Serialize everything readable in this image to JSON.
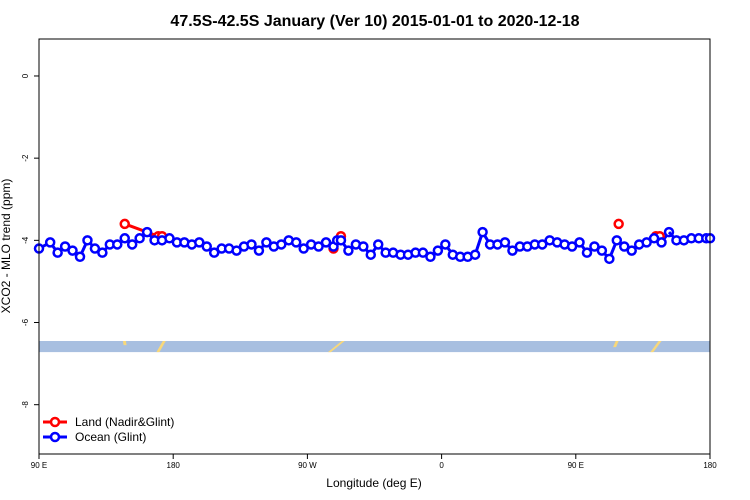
{
  "chart_data": {
    "type": "line",
    "title": "47.5S-42.5S January (Ver 10)   2015-01-01 to 2020-12-18",
    "xlabel": "Longitude (deg E)",
    "ylabel": "XCO2 - MLO trend (ppm)",
    "xlim": [
      90,
      450
    ],
    "ylim": [
      -9.2,
      0.9
    ],
    "x_ticks": [
      {
        "value": 90,
        "label": "90 E"
      },
      {
        "value": 162,
        "label": "180"
      },
      {
        "value": 234,
        "label": "90 W"
      },
      {
        "value": 306,
        "label": "0"
      },
      {
        "value": 378,
        "label": "90 E"
      },
      {
        "value": 450,
        "label": "180"
      }
    ],
    "y_ticks": [
      {
        "value": 0,
        "label": "0"
      },
      {
        "value": -2,
        "label": "-2"
      },
      {
        "value": -4,
        "label": "-4"
      },
      {
        "value": -6,
        "label": "-6"
      },
      {
        "value": -8,
        "label": "-8"
      }
    ],
    "grid": false,
    "legend_position": "bottom-left",
    "series": [
      {
        "name": "Land (Nadir&Glint)",
        "color": "#ff0000",
        "x": [
          136,
          154,
          156,
          248,
          252,
          401,
          421,
          423
        ],
        "y": [
          -3.6,
          -3.9,
          -3.9,
          -4.2,
          -3.9,
          -3.6,
          -3.9,
          -3.9
        ]
      },
      {
        "name": "Ocean (Glint)",
        "color": "#0000ff",
        "x": [
          90,
          96,
          100,
          104,
          108,
          112,
          116,
          120,
          124,
          128,
          132,
          136,
          140,
          144,
          148,
          152,
          156,
          160,
          164,
          168,
          172,
          176,
          180,
          184,
          188,
          192,
          196,
          200,
          204,
          208,
          212,
          216,
          220,
          224,
          228,
          232,
          236,
          240,
          244,
          248,
          250,
          252,
          256,
          260,
          264,
          268,
          272,
          276,
          280,
          284,
          288,
          292,
          296,
          300,
          304,
          308,
          312,
          316,
          320,
          324,
          328,
          332,
          336,
          340,
          344,
          348,
          352,
          356,
          360,
          364,
          368,
          372,
          376,
          380,
          384,
          388,
          392,
          396,
          400,
          404,
          408,
          412,
          416,
          420,
          424,
          428
        ],
        "y": [
          -4.2,
          -4.05,
          -4.3,
          -4.15,
          -4.25,
          -4.4,
          -4.0,
          -4.2,
          -4.3,
          -4.1,
          -4.1,
          -3.95,
          -4.1,
          -3.95,
          -3.8,
          -4.0,
          -4.0,
          -3.95,
          -4.05,
          -4.05,
          -4.1,
          -4.05,
          -4.15,
          -4.3,
          -4.2,
          -4.2,
          -4.25,
          -4.15,
          -4.1,
          -4.25,
          -4.05,
          -4.15,
          -4.1,
          -4.0,
          -4.05,
          -4.2,
          -4.1,
          -4.15,
          -4.05,
          -4.15,
          -4.0,
          -4.0,
          -4.25,
          -4.1,
          -4.15,
          -4.35,
          -4.1,
          -4.3,
          -4.3,
          -4.35,
          -4.35,
          -4.3,
          -4.3,
          -4.4,
          -4.25,
          -4.1,
          -4.35,
          -4.4,
          -4.4,
          -4.35,
          -3.8,
          -4.1,
          -4.1,
          -4.05,
          -4.25,
          -4.15,
          -4.15,
          -4.1,
          -4.1,
          -4.0,
          -4.05,
          -4.1,
          -4.15,
          -4.05,
          -4.3,
          -4.15,
          -4.25,
          -4.45,
          -4.0,
          -4.15,
          -4.25,
          -4.1,
          -4.05,
          -3.95,
          -4.05,
          -3.8
        ]
      }
    ],
    "ocean_tail": {
      "x": [
        432,
        436,
        440,
        444,
        448,
        450
      ],
      "y": [
        -4.0,
        -4.0,
        -3.95,
        -3.95,
        -3.95,
        -3.95
      ]
    },
    "band": {
      "y_range": [
        -6.72,
        -6.45
      ],
      "color": "#a8bfe0",
      "land_color": "#f8d87a",
      "land_segments": [
        {
          "x": [
            135,
            137
          ],
          "y": [
            -6.45,
            -6.55
          ]
        },
        {
          "x": [
            153,
            158
          ],
          "y": [
            -6.72,
            -6.45
          ]
        },
        {
          "x": [
            245,
            254
          ],
          "y": [
            -6.72,
            -6.45
          ]
        },
        {
          "x": [
            398,
            401
          ],
          "y": [
            -6.6,
            -6.45
          ]
        },
        {
          "x": [
            418,
            424
          ],
          "y": [
            -6.72,
            -6.45
          ]
        }
      ]
    }
  }
}
